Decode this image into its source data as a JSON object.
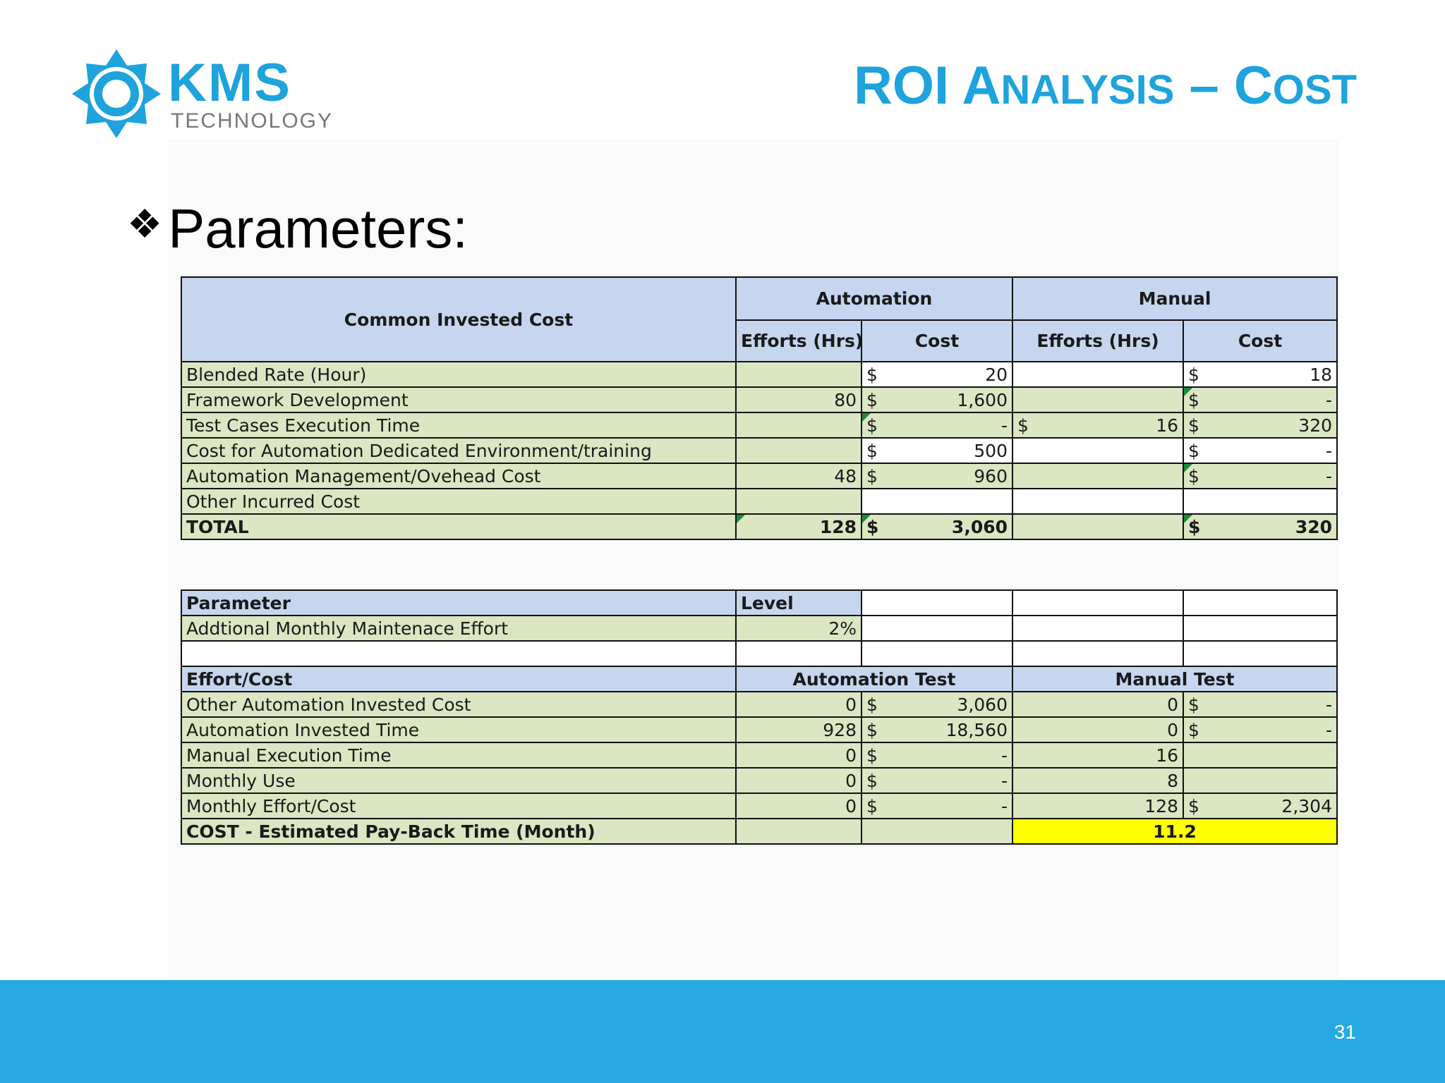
{
  "logo": {
    "name": "KMS",
    "sub": "TECHNOLOGY"
  },
  "title": {
    "part1": "ROI ",
    "part2": "A",
    "part3": "NALYSIS",
    "part4": " – ",
    "part5": "C",
    "part6": "OST"
  },
  "bullet": {
    "marker": "❖",
    "text": "Parameters:"
  },
  "cost_table": {
    "header": {
      "common": "Common Invested Cost",
      "automation": "Automation",
      "manual": "Manual",
      "efforts": "Efforts (Hrs)",
      "cost": "Cost"
    },
    "rows": [
      {
        "label": "Blended Rate (Hour)",
        "a_eff": "",
        "a_cur": "$",
        "a_cost": "20",
        "m_cur": "",
        "m_eff": "",
        "m_ccur": "$",
        "m_cost": "18"
      },
      {
        "label": "Framework Development",
        "a_eff": "80",
        "a_cur": "$",
        "a_cost": "1,600",
        "m_cur": "",
        "m_eff": "",
        "m_ccur": "$",
        "m_cost": "-"
      },
      {
        "label": "Test Cases Execution Time",
        "a_eff": "",
        "a_cur": "$",
        "a_cost": "-",
        "m_cur": "$",
        "m_eff": "16",
        "m_ccur": "$",
        "m_cost": "320"
      },
      {
        "label": "Cost for Automation Dedicated Environment/training",
        "a_eff": "",
        "a_cur": "$",
        "a_cost": "500",
        "m_cur": "",
        "m_eff": "",
        "m_ccur": "$",
        "m_cost": "-"
      },
      {
        "label": "Automation Management/Ovehead Cost",
        "a_eff": "48",
        "a_cur": "$",
        "a_cost": "960",
        "m_cur": "",
        "m_eff": "",
        "m_ccur": "$",
        "m_cost": "-"
      },
      {
        "label": "Other Incurred Cost",
        "a_eff": "",
        "a_cur": "",
        "a_cost": "",
        "m_cur": "",
        "m_eff": "",
        "m_ccur": "",
        "m_cost": ""
      }
    ],
    "total": {
      "label": "TOTAL",
      "a_eff": "128",
      "a_cur": "$",
      "a_cost": "3,060",
      "m_ccur": "$",
      "m_cost": "320"
    }
  },
  "param_table": {
    "header": {
      "parameter": "Parameter",
      "level": "Level"
    },
    "row": {
      "label": "Addtional Monthly Maintenace Effort",
      "value": "2%"
    }
  },
  "effort_table": {
    "header": {
      "effort_cost": "Effort/Cost",
      "automation_test": "Automation Test",
      "manual_test": "Manual Test"
    },
    "rows": [
      {
        "label": "Other Automation Invested Cost",
        "a_eff": "0",
        "a_cur": "$",
        "a_cost": "3,060",
        "m_eff": "0",
        "m_cur": "$",
        "m_cost": "-"
      },
      {
        "label": "Automation Invested Time",
        "a_eff": "928",
        "a_cur": "$",
        "a_cost": "18,560",
        "m_eff": "0",
        "m_cur": "$",
        "m_cost": "-"
      },
      {
        "label": "Manual Execution Time",
        "a_eff": "0",
        "a_cur": "$",
        "a_cost": "-",
        "m_eff": "16",
        "m_cur": "",
        "m_cost": ""
      },
      {
        "label": "Monthly Use",
        "a_eff": "0",
        "a_cur": "$",
        "a_cost": "-",
        "m_eff": "8",
        "m_cur": "",
        "m_cost": ""
      },
      {
        "label": "Monthly Effort/Cost",
        "a_eff": "0",
        "a_cur": "$",
        "a_cost": "-",
        "m_eff": "128",
        "m_cur": "$",
        "m_cost": "2,304"
      }
    ],
    "payback": {
      "label": "COST - Estimated Pay-Back Time (Month)",
      "value": "11.2"
    }
  },
  "footer": {
    "page": "31",
    "color": "#27aae1"
  },
  "colors": {
    "brand": "#1ea3dd",
    "header_fill": "#c5d6ee",
    "label_fill": "#dbe6c2",
    "highlight": "#ffff00"
  }
}
